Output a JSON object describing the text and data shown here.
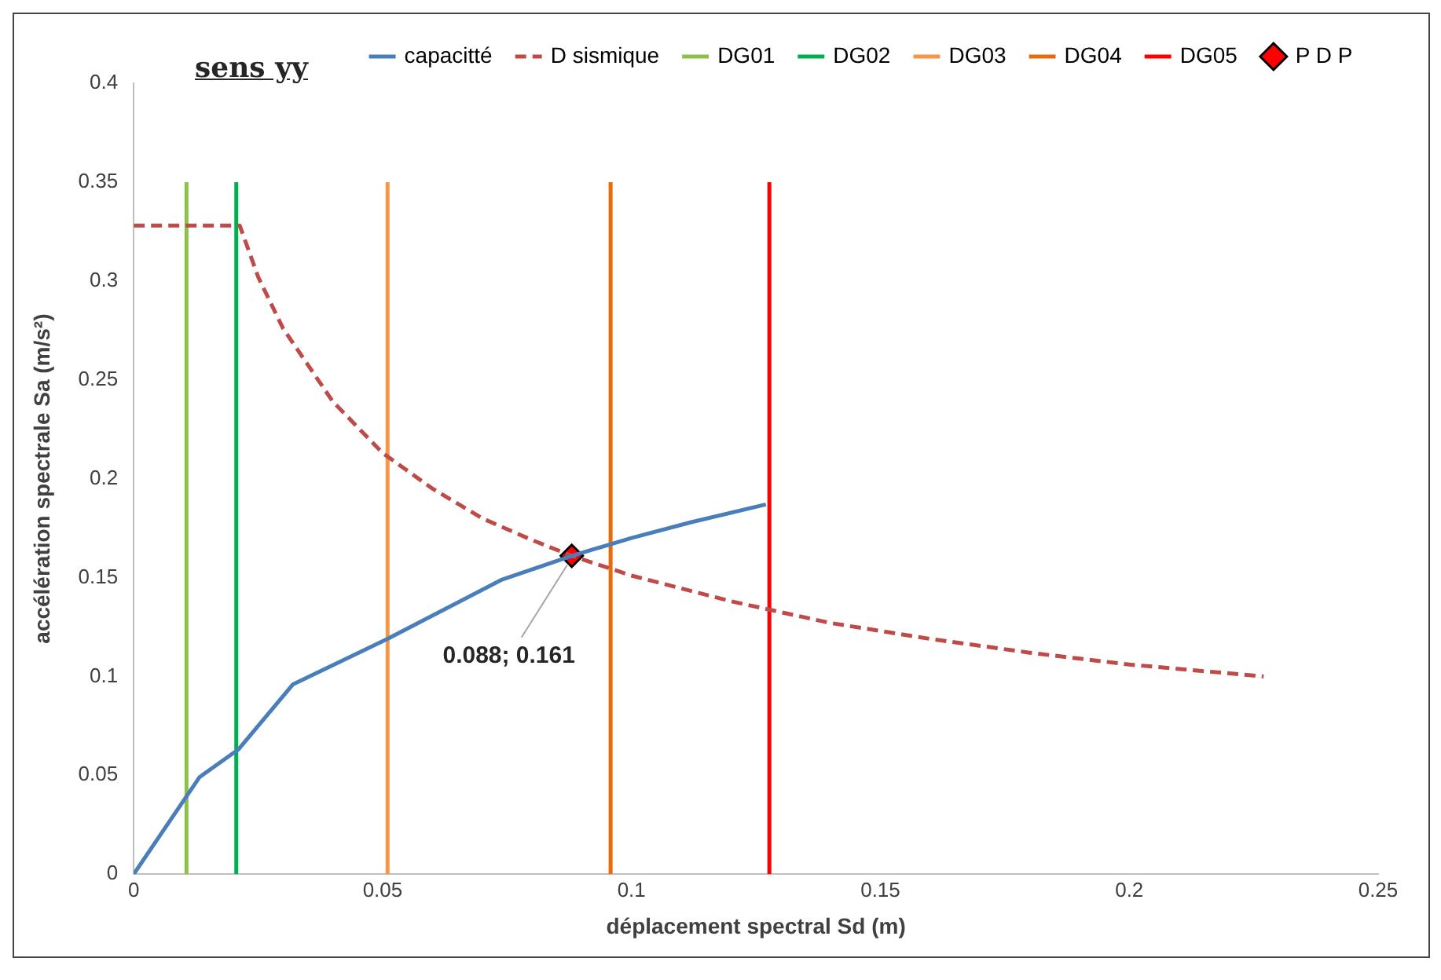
{
  "chart_data": {
    "type": "line",
    "title": "sens yy",
    "xlabel": "déplacement spectral Sd (m)",
    "ylabel": "accélération spectrale Sa (m/s²)",
    "xlim": [
      0,
      0.25
    ],
    "xticks": [
      0,
      0.05,
      0.1,
      0.15,
      0.2,
      0.25
    ],
    "ylim": [
      0,
      0.4
    ],
    "yticks": [
      0,
      0.05,
      0.1,
      0.15,
      0.2,
      0.25,
      0.3,
      0.35,
      0.4
    ],
    "grid": false,
    "legend": "top",
    "marker": "none",
    "series": [
      {
        "name": "capacitté",
        "color": "#4a7ebb",
        "line_style": "solid",
        "x": [
          0,
          0.0132,
          0.021,
          0.032,
          0.051,
          0.074,
          0.088,
          0.1,
          0.112,
          0.127
        ],
        "values": [
          0,
          0.049,
          0.063,
          0.096,
          0.119,
          0.149,
          0.161,
          0.17,
          0.178,
          0.187
        ]
      },
      {
        "name": "D sismique",
        "color": "#be4b48",
        "line_style": "dashed",
        "x": [
          0,
          0.0213,
          0.025,
          0.03,
          0.04,
          0.05,
          0.06,
          0.07,
          0.08,
          0.088,
          0.1,
          0.12,
          0.14,
          0.16,
          0.18,
          0.2,
          0.227
        ],
        "values": [
          0.328,
          0.328,
          0.302,
          0.276,
          0.239,
          0.213,
          0.195,
          0.18,
          0.169,
          0.161,
          0.151,
          0.138,
          0.127,
          0.119,
          0.112,
          0.106,
          0.1
        ]
      },
      {
        "name": "DG01",
        "color": "#8cc04a",
        "line_style": "solid",
        "x": [
          0.0106,
          0.0106
        ],
        "values": [
          0,
          0.35
        ]
      },
      {
        "name": "DG02",
        "color": "#00b050",
        "line_style": "solid",
        "x": [
          0.0206,
          0.0206
        ],
        "values": [
          0,
          0.35
        ]
      },
      {
        "name": "DG03",
        "color": "#f79646",
        "line_style": "solid",
        "x": [
          0.051,
          0.051
        ],
        "values": [
          0,
          0.35
        ]
      },
      {
        "name": "DG04",
        "color": "#e46c0a",
        "line_style": "solid",
        "x": [
          0.0958,
          0.0958
        ],
        "values": [
          0,
          0.35
        ]
      },
      {
        "name": "DG05",
        "color": "#ff0000",
        "line_style": "solid",
        "x": [
          0.1277,
          0.1277
        ],
        "values": [
          0,
          0.35
        ]
      },
      {
        "name": "P D P",
        "type": "scatter",
        "color": "#ff0000",
        "marker": "diamond",
        "x": [
          0.088
        ],
        "values": [
          0.161
        ]
      }
    ],
    "annotations": [
      {
        "text": "0.088; 0.161",
        "x": 0.088,
        "y": 0.161
      }
    ]
  }
}
